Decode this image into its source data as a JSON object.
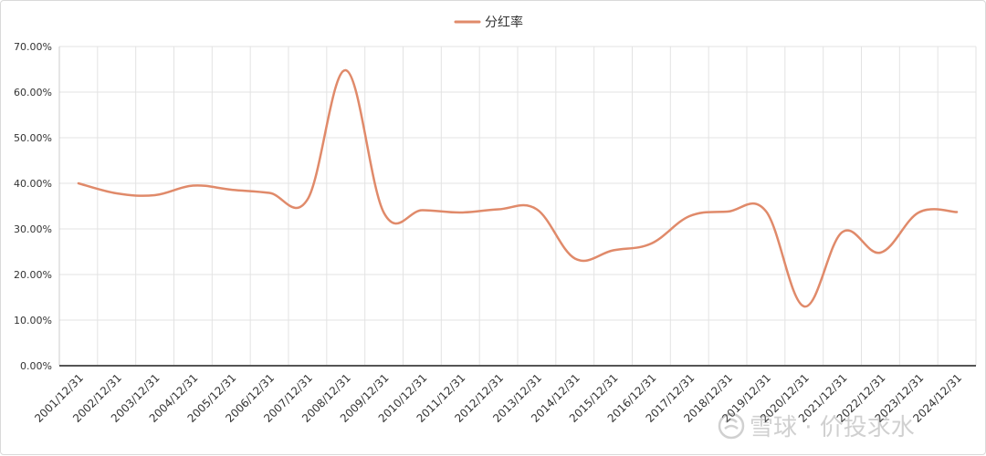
{
  "chart_data": {
    "type": "line",
    "title": "",
    "xlabel": "",
    "ylabel": "",
    "categories": [
      "2001/12/31",
      "2002/12/31",
      "2003/12/31",
      "2004/12/31",
      "2005/12/31",
      "2006/12/31",
      "2007/12/31",
      "2008/12/31",
      "2009/12/31",
      "2010/12/31",
      "2011/12/31",
      "2012/12/31",
      "2013/12/31",
      "2014/12/31",
      "2015/12/31",
      "2016/12/31",
      "2017/12/31",
      "2018/12/31",
      "2019/12/31",
      "2020/12/31",
      "2021/12/31",
      "2022/12/31",
      "2023/12/31",
      "2024/12/31"
    ],
    "series": [
      {
        "name": "分红率",
        "color": "#e08a6a",
        "values": [
          40.0,
          37.8,
          37.4,
          39.5,
          38.6,
          37.9,
          36.5,
          64.8,
          33.5,
          34.1,
          33.6,
          34.3,
          34.3,
          23.5,
          25.3,
          26.8,
          32.8,
          33.8,
          33.9,
          13.0,
          29.3,
          24.8,
          33.6,
          33.7
        ]
      }
    ],
    "ylim": [
      0,
      70
    ],
    "yticks": [
      "0.00%",
      "10.00%",
      "20.00%",
      "30.00%",
      "40.00%",
      "50.00%",
      "60.00%",
      "70.00%"
    ],
    "grid": true,
    "legend_position": "top-center"
  },
  "watermark": {
    "text": "雪球 · 价投求水",
    "icon": "snowball-logo-icon"
  }
}
